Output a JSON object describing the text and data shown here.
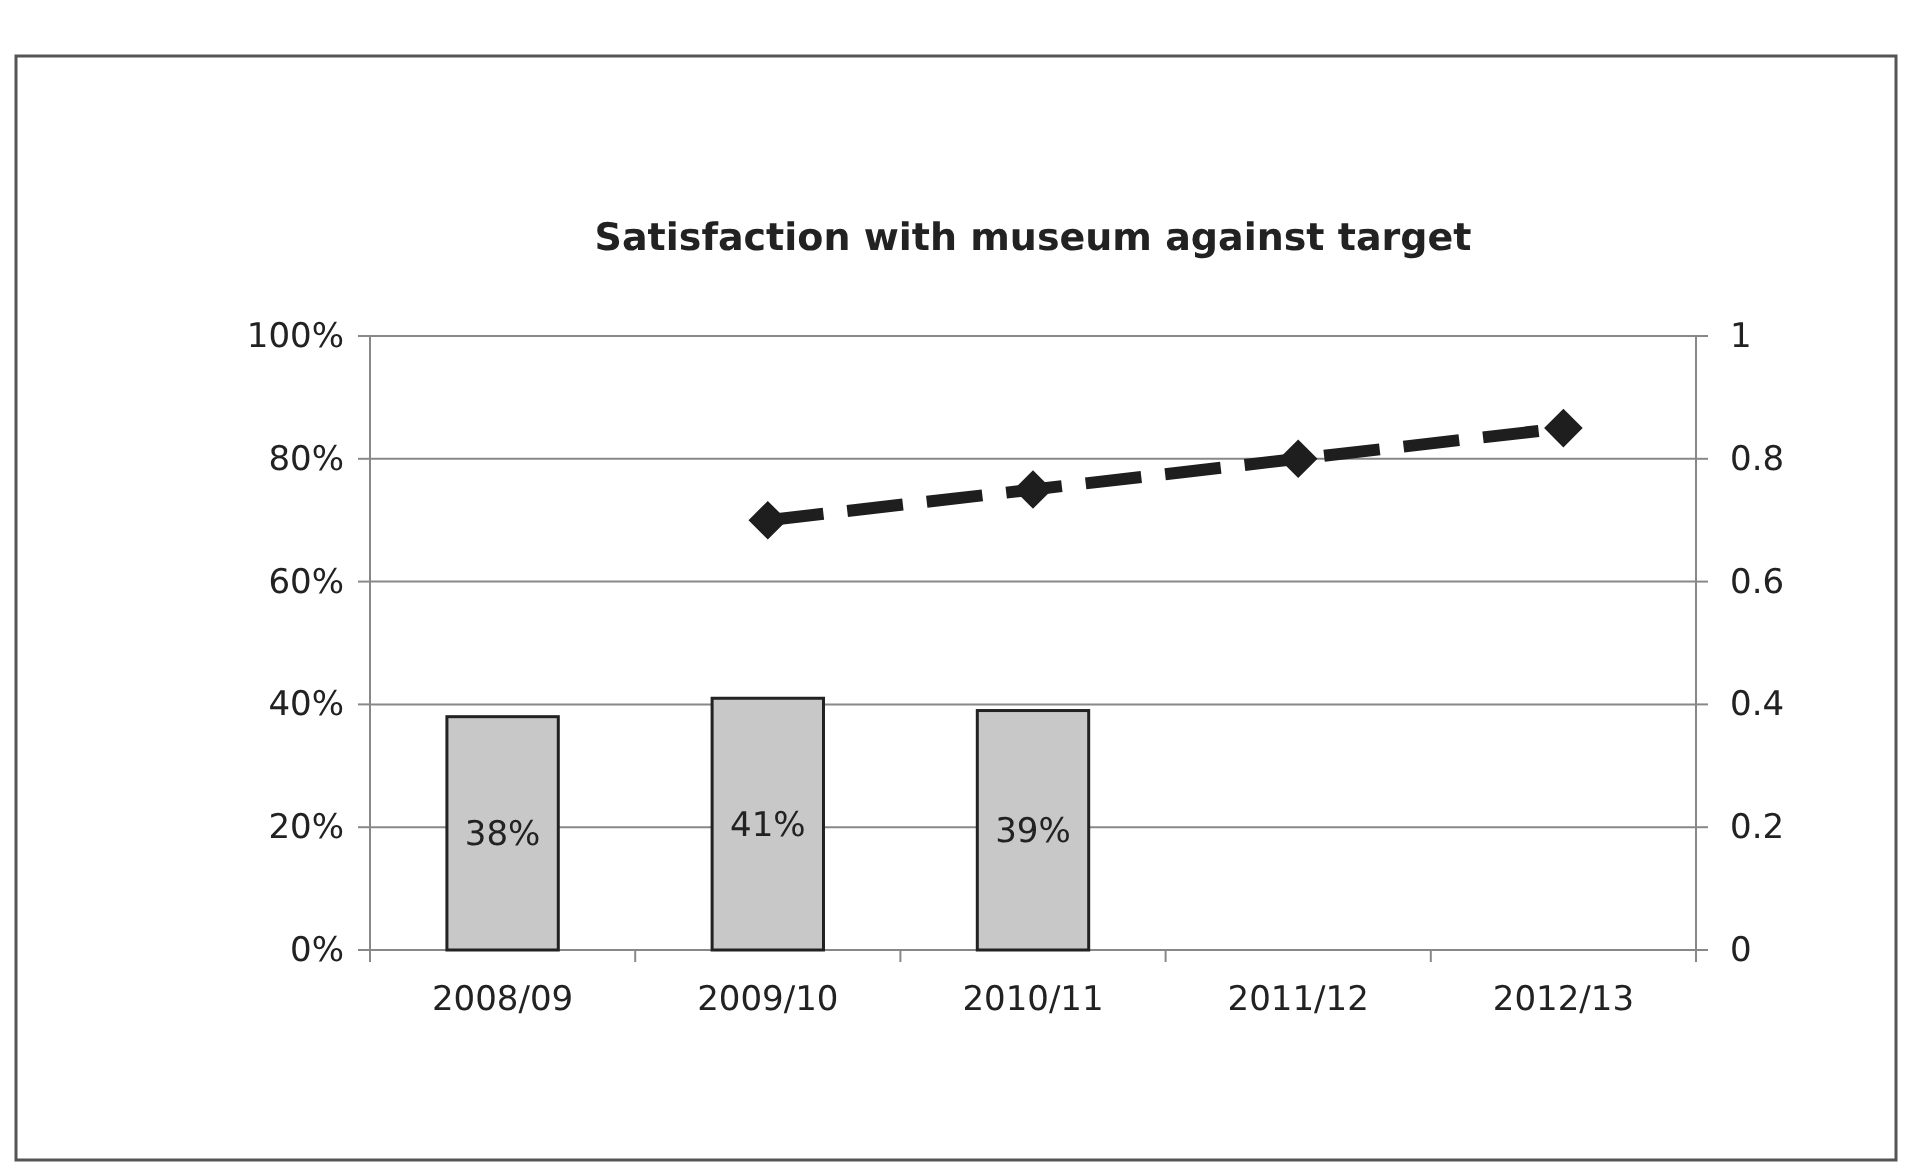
{
  "chart_data": {
    "type": "bar",
    "title": "Satisfaction with museum against target",
    "categories": [
      "2008/09",
      "2009/10",
      "2010/11",
      "2011/12",
      "2012/13"
    ],
    "series": [
      {
        "color": "#c8c8c8",
        "values": [
          38,
          41,
          39,
          null,
          null
        ],
        "value_labels": [
          "38%",
          "41%",
          "39%",
          null,
          null
        ]
      },
      {
        "type": "line",
        "axis": "y2",
        "color": "#1e1e1e",
        "values": [
          null,
          0.7,
          0.75,
          0.8,
          0.85
        ],
        "line_style": "dashed",
        "marker": "diamond"
      }
    ],
    "ylim": [
      0,
      100
    ],
    "yticks": [
      {
        "value": 0,
        "label": "0%"
      },
      {
        "value": 20,
        "label": "20%"
      },
      {
        "value": 40,
        "label": "40%"
      },
      {
        "value": 60,
        "label": "60%"
      },
      {
        "value": 80,
        "label": "80%"
      },
      {
        "value": 100,
        "label": "100%"
      }
    ],
    "y2lim": [
      0,
      1
    ],
    "y2ticks": [
      0,
      0.2,
      0.4,
      0.6,
      0.8,
      1
    ],
    "grid": "y"
  }
}
